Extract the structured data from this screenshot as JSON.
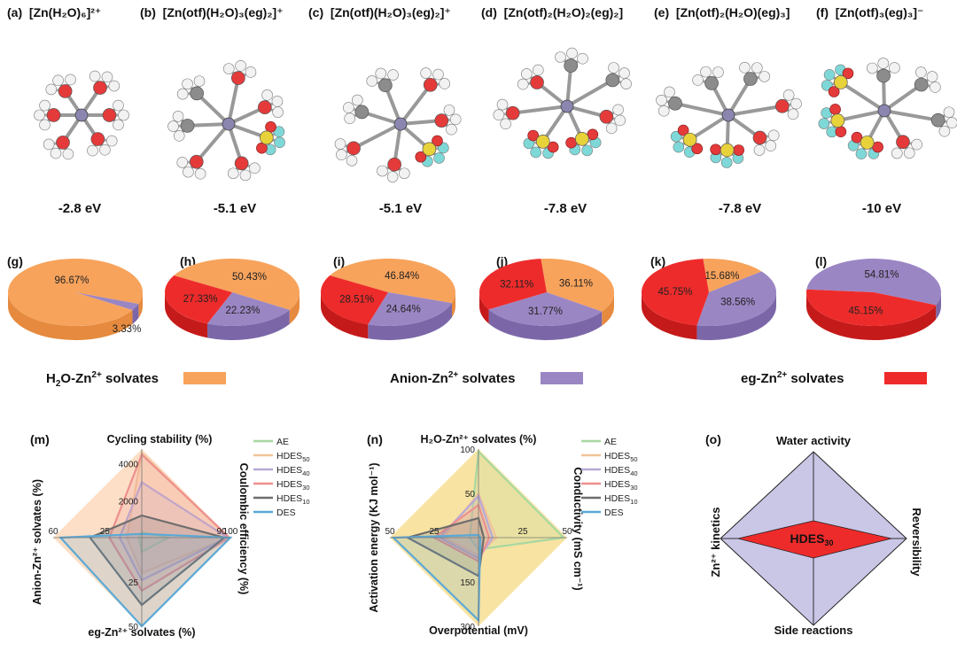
{
  "panels_top": [
    {
      "letter": "(a)",
      "formula": "[Zn(H₂O)₆]²⁺",
      "energy": "-2.8 eV"
    },
    {
      "letter": "(b)",
      "formula": "[Zn(otf)(H₂O)₃(eg)₂]⁺",
      "energy": "-5.1 eV"
    },
    {
      "letter": "(c)",
      "formula": "[Zn(otf)(H₂O)₃(eg)₂]⁺",
      "energy": "-5.1 eV"
    },
    {
      "letter": "(d)",
      "formula": "[Zn(otf)₂(H₂O)₂(eg)₂]",
      "energy": "-7.8 eV"
    },
    {
      "letter": "(e)",
      "formula": "[Zn(otf)₂(H₂O)(eg)₃]",
      "energy": "-7.8 eV"
    },
    {
      "letter": "(f)",
      "formula": "[Zn(otf)₃(eg)₃]⁻",
      "energy": "-10 eV"
    }
  ],
  "colors": {
    "h2o": "#f7a35c",
    "h2o_side": "#e58a3e",
    "anion": "#9b86c4",
    "anion_side": "#7b67a8",
    "eg": "#ee2b2b",
    "eg_side": "#c51a1a",
    "zn": "#8a86b0",
    "O": "#e53a3a",
    "H": "#f2f2f2",
    "C": "#8c8c8c",
    "S": "#e8d23a",
    "F": "#7fd8d8"
  },
  "chart_data": [
    {
      "type": "pie",
      "panel": "(g)",
      "slices": [
        {
          "name": "H2O",
          "value": 96.67,
          "label": "96.67%"
        },
        {
          "name": "Anion",
          "value": 3.33,
          "label": "3.33%"
        },
        {
          "name": "eg",
          "value": 0,
          "label": ""
        }
      ]
    },
    {
      "type": "pie",
      "panel": "(h)",
      "slices": [
        {
          "name": "H2O",
          "value": 50.43,
          "label": "50.43%"
        },
        {
          "name": "Anion",
          "value": 22.23,
          "label": "22.23%"
        },
        {
          "name": "eg",
          "value": 27.33,
          "label": "27.33%"
        }
      ]
    },
    {
      "type": "pie",
      "panel": "(i)",
      "slices": [
        {
          "name": "H2O",
          "value": 46.84,
          "label": "46.84%"
        },
        {
          "name": "Anion",
          "value": 24.64,
          "label": "24.64%"
        },
        {
          "name": "eg",
          "value": 28.51,
          "label": "28.51%"
        }
      ]
    },
    {
      "type": "pie",
      "panel": "(j)",
      "slices": [
        {
          "name": "H2O",
          "value": 36.11,
          "label": "36.11%"
        },
        {
          "name": "Anion",
          "value": 31.77,
          "label": "31.77%"
        },
        {
          "name": "eg",
          "value": 32.11,
          "label": "32.11%"
        }
      ]
    },
    {
      "type": "pie",
      "panel": "(k)",
      "slices": [
        {
          "name": "H2O",
          "value": 15.68,
          "label": "15.68%"
        },
        {
          "name": "Anion",
          "value": 38.56,
          "label": "38.56%"
        },
        {
          "name": "eg",
          "value": 45.75,
          "label": "45.75%"
        }
      ]
    },
    {
      "type": "pie",
      "panel": "(l)",
      "slices": [
        {
          "name": "H2O",
          "value": 0,
          "label": ""
        },
        {
          "name": "Anion",
          "value": 54.81,
          "label": "54.81%"
        },
        {
          "name": "eg",
          "value": 45.15,
          "label": "45.15%"
        }
      ]
    },
    {
      "type": "radar",
      "panel": "(m)",
      "axes": [
        "Cycling stability (%)",
        "Coulombic efficiency (%)",
        "eg-Zn²⁺ solvates (%)",
        "Anion-Zn²⁺ solvates (%)"
      ],
      "axis_ranges": [
        [
          0,
          4800
        ],
        [
          0,
          100
        ],
        [
          0,
          50
        ],
        [
          0,
          60
        ]
      ],
      "ticks": [
        [
          "2000",
          "4000"
        ],
        [
          "90",
          "100"
        ],
        [
          "25",
          "50"
        ],
        [
          "25",
          "60"
        ]
      ],
      "tick_values": [
        [
          2000,
          4000
        ],
        [
          90,
          100
        ],
        [
          25,
          50
        ],
        [
          25,
          60
        ]
      ],
      "series": [
        {
          "name": "AE",
          "sub": "",
          "color": "#a8d8a0",
          "values": [
            300,
            30,
            8,
            2
          ]
        },
        {
          "name": "HDES",
          "sub": "50",
          "color": "#f2c39a",
          "values": [
            4600,
            98,
            20,
            10
          ]
        },
        {
          "name": "HDES",
          "sub": "40",
          "color": "#b7a9d6",
          "values": [
            3000,
            97,
            24,
            15
          ]
        },
        {
          "name": "HDES",
          "sub": "30",
          "color": "#ee8f8f",
          "values": [
            4500,
            99,
            30,
            22
          ]
        },
        {
          "name": "HDES",
          "sub": "10",
          "color": "#6d6d6d",
          "values": [
            1200,
            93,
            38,
            35
          ]
        },
        {
          "name": "DES",
          "sub": "",
          "color": "#5aa9d6",
          "values": [
            200,
            100,
            50,
            55
          ]
        }
      ]
    },
    {
      "type": "radar",
      "panel": "(n)",
      "axes": [
        "H₂O-Zn²⁺ solvates (%)",
        "Conductivity (mS cm⁻¹)",
        "Overpotential (mV)",
        "Activation energy (KJ mol⁻¹)"
      ],
      "axis_ranges": [
        [
          0,
          100
        ],
        [
          0,
          50
        ],
        [
          0,
          300
        ],
        [
          0,
          50
        ]
      ],
      "ticks": [
        [
          "50",
          "100"
        ],
        [
          "25",
          "50"
        ],
        [
          "150",
          "300"
        ],
        [
          "25",
          "50"
        ]
      ],
      "tick_values": [
        [
          50,
          100
        ],
        [
          25,
          50
        ],
        [
          150,
          300
        ],
        [
          25,
          50
        ]
      ],
      "series": [
        {
          "name": "AE",
          "sub": "",
          "color": "#a8d8a0",
          "values": [
            97,
            48,
            40,
            5
          ]
        },
        {
          "name": "HDES",
          "sub": "50",
          "color": "#f2c39a",
          "values": [
            50,
            10,
            60,
            20
          ]
        },
        {
          "name": "HDES",
          "sub": "40",
          "color": "#b7a9d6",
          "values": [
            47,
            8,
            70,
            22
          ]
        },
        {
          "name": "HDES",
          "sub": "30",
          "color": "#ee8f8f",
          "values": [
            37,
            6,
            80,
            25
          ]
        },
        {
          "name": "HDES",
          "sub": "10",
          "color": "#6d6d6d",
          "values": [
            22,
            3,
            130,
            40
          ]
        },
        {
          "name": "DES",
          "sub": "",
          "color": "#5aa9d6",
          "values": [
            3,
            1,
            280,
            48
          ]
        }
      ]
    }
  ],
  "legend_bar": [
    {
      "label_pre": "H",
      "label_sub": "2",
      "label_mid": "O-Zn",
      "label_sup": "2+",
      "label_post": " solvates",
      "color": "#f7a35c"
    },
    {
      "label_pre": "Anion-Zn",
      "label_sub": "",
      "label_mid": "",
      "label_sup": "2+",
      "label_post": " solvates",
      "color": "#9b86c4"
    },
    {
      "label_pre": "eg-Zn",
      "label_sub": "",
      "label_mid": "",
      "label_sup": "2+",
      "label_post": " solvates",
      "color": "#ee2b2b"
    }
  ],
  "pie_letters": [
    "(g)",
    "(h)",
    "(i)",
    "(j)",
    "(k)",
    "(l)"
  ],
  "panel_m": {
    "letter": "(m)"
  },
  "panel_n": {
    "letter": "(n)"
  },
  "panel_o": {
    "letter": "(o)",
    "top": "Water activity",
    "right": "Reversibility",
    "bottom": "Side reactions",
    "left": "Zn²⁺ kinetics",
    "center_main": "HDES",
    "center_sub": "30"
  }
}
